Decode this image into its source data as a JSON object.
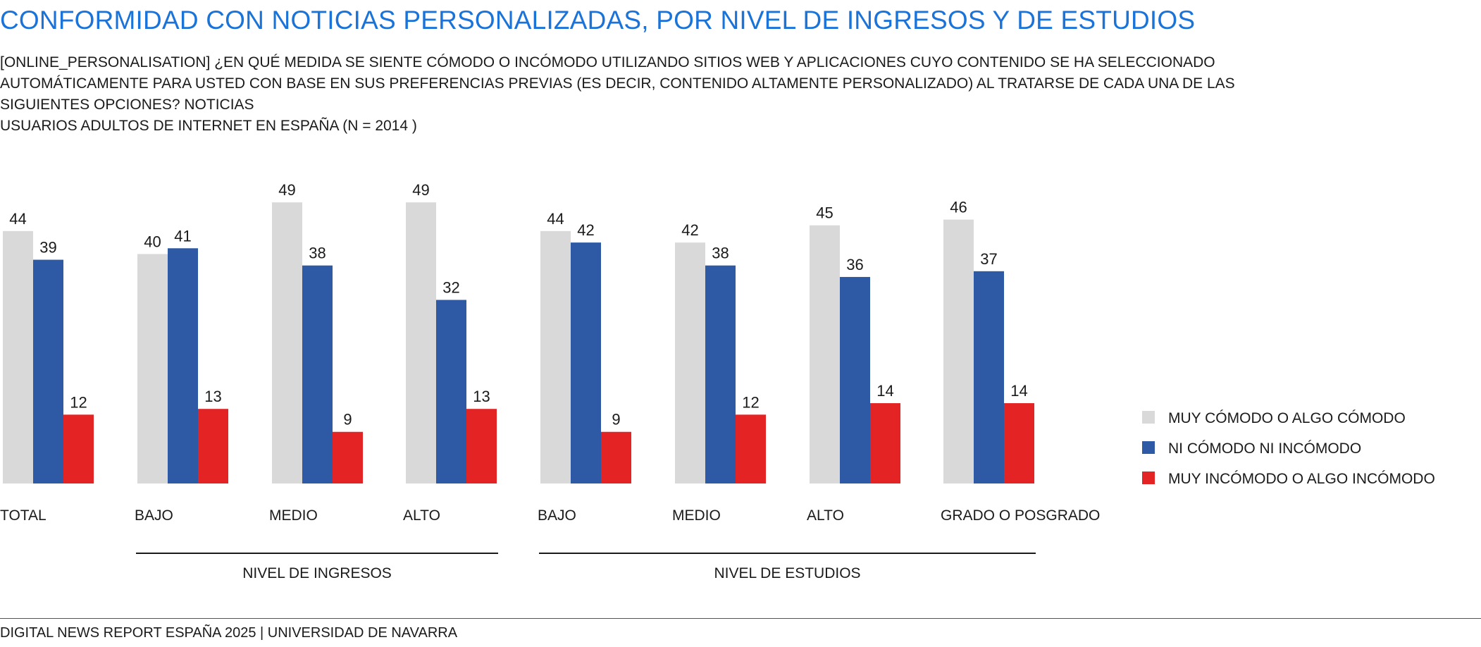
{
  "title": "CONFORMIDAD CON NOTICIAS PERSONALIZADAS, POR NIVEL DE INGRESOS Y DE ESTUDIOS",
  "question_lines": [
    "[ONLINE_PERSONALISATION] ¿EN QUÉ MEDIDA SE SIENTE CÓMODO O INCÓMODO UTILIZANDO SITIOS WEB Y APLICACIONES CUYO CONTENIDO SE HA SELECCIONADO",
    "AUTOMÁTICAMENTE PARA USTED CON BASE EN SUS PREFERENCIAS PREVIAS (ES DECIR, CONTENIDO ALTAMENTE PERSONALIZADO) AL TRATARSE DE CADA UNA DE LAS",
    "SIGUIENTES OPCIONES? NOTICIAS",
    "USUARIOS ADULTOS DE INTERNET EN ESPAÑA (N = 2014 )"
  ],
  "footer": "DIGITAL NEWS REPORT ESPAÑA 2025 | UNIVERSIDAD DE NAVARRA",
  "chart_data": {
    "type": "bar",
    "categories": [
      "TOTAL",
      "BAJO",
      "MEDIO",
      "ALTO",
      "BAJO",
      "MEDIO",
      "ALTO",
      "GRADO O POSGRADO"
    ],
    "groups": [
      {
        "label": "NIVEL DE INGRESOS",
        "from": 1,
        "to": 3
      },
      {
        "label": "NIVEL DE ESTUDIOS",
        "from": 4,
        "to": 7
      }
    ],
    "series": [
      {
        "name": "MUY CÓMODO O ALGO CÓMODO",
        "color": "#d9d9d9",
        "values": [
          44,
          40,
          49,
          49,
          44,
          42,
          45,
          46
        ]
      },
      {
        "name": "NI CÓMODO NI INCÓMODO",
        "color": "#2e59a5",
        "values": [
          39,
          41,
          38,
          32,
          42,
          38,
          36,
          37
        ]
      },
      {
        "name": "MUY INCÓMODO O ALGO INCÓMODO",
        "color": "#e42424",
        "values": [
          12,
          13,
          9,
          13,
          9,
          12,
          14,
          14
        ]
      }
    ],
    "legend_position": "right",
    "grid": false
  }
}
